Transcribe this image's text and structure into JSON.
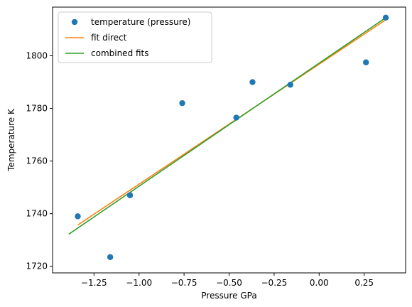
{
  "chart_data": {
    "type": "scatter",
    "title": "",
    "xlabel": "Pressure GPa",
    "ylabel": "Temperature K",
    "xlim": [
      -1.48,
      0.48
    ],
    "ylim": [
      1717.5,
      1818.5
    ],
    "x_ticks": [
      -1.25,
      -1.0,
      -0.75,
      -0.5,
      -0.25,
      0.0,
      0.25
    ],
    "x_tick_labels": [
      "−1.25",
      "−1.00",
      "−0.75",
      "−0.50",
      "−0.25",
      "0.00",
      "0.25"
    ],
    "y_ticks": [
      1720,
      1740,
      1760,
      1780,
      1800
    ],
    "y_tick_labels": [
      "1720",
      "1740",
      "1760",
      "1780",
      "1800"
    ],
    "grid": false,
    "legend_position": "top-left",
    "series": [
      {
        "name": "temperature (pressure)",
        "kind": "points",
        "color": "#1f77b4",
        "x": [
          -1.34,
          -1.16,
          -1.05,
          -0.76,
          -0.46,
          -0.37,
          -0.16,
          0.26,
          0.37
        ],
        "y": [
          1739,
          1723.5,
          1747,
          1782,
          1776.5,
          1790,
          1789,
          1797.5,
          1814.5
        ]
      },
      {
        "name": "fit direct",
        "kind": "line",
        "color": "#ff7f0e",
        "x": [
          -1.34,
          0.37
        ],
        "y": [
          1735.7,
          1813.7
        ]
      },
      {
        "name": "combined fits",
        "kind": "line",
        "color": "#2ca02c",
        "x": [
          -1.39,
          0.37
        ],
        "y": [
          1732.2,
          1814.5
        ]
      }
    ]
  }
}
